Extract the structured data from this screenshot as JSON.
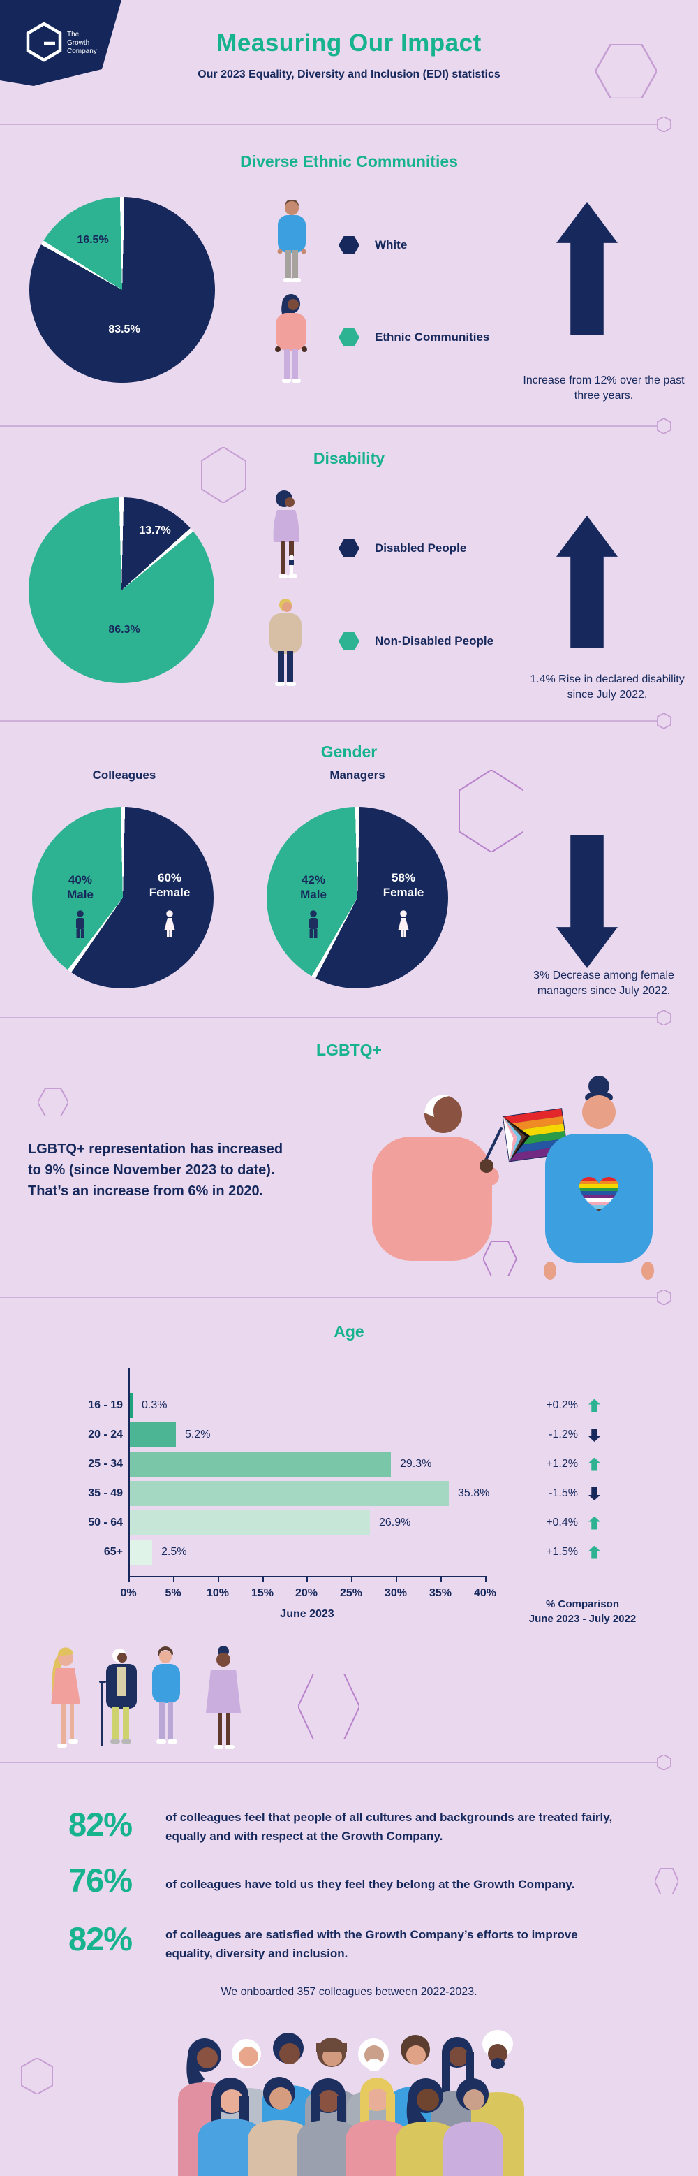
{
  "colors": {
    "background": "#e9d8ee",
    "navy": "#17295c",
    "teal": "#16b38c",
    "pie_navy": "#16285c",
    "pie_teal": "#2db391",
    "divider_line": "#cdb0da",
    "hex_stroke": "#c79ed3",
    "hex_stroke_bright": "#b983cc",
    "slice_gap": "#ffffff"
  },
  "header": {
    "logo": {
      "l1": "The",
      "l2": "Growth",
      "l3": "Company"
    },
    "title": "Measuring Our Impact",
    "subtitle": "Our 2023 Equality, Diversity and Inclusion (EDI) statistics"
  },
  "pies": {
    "ethnic": {
      "split_pct": 83.5
    },
    "disability": {
      "split_pct": 13.7
    },
    "colleagues": {
      "split_pct": 60
    },
    "managers": {
      "split_pct": 58
    }
  },
  "sections": {
    "ethnic": {
      "title": "Diverse Ethnic Communities",
      "pie_small_label": "16.5%",
      "pie_big_label": "83.5%",
      "legend": [
        {
          "label": "White"
        },
        {
          "label": "Ethnic Communities"
        }
      ],
      "note": "Increase from 12% over the past three years.",
      "trend": "up"
    },
    "disability": {
      "title": "Disability",
      "pie_small_label": "13.7%",
      "pie_big_label": "86.3%",
      "legend": [
        {
          "label": "Disabled People"
        },
        {
          "label": "Non-Disabled People"
        }
      ],
      "note": "1.4% Rise in declared disability since July 2022.",
      "trend": "up"
    },
    "gender": {
      "title": "Gender",
      "charts": [
        {
          "label": "Colleagues",
          "male_pct": "40%",
          "male_word": "Male",
          "female_pct": "60%",
          "female_word": "Female"
        },
        {
          "label": "Managers",
          "male_pct": "42%",
          "male_word": "Male",
          "female_pct": "58%",
          "female_word": "Female"
        }
      ],
      "note": "3% Decrease among female managers since July 2022.",
      "trend": "down"
    },
    "lgbtq": {
      "title": "LGBTQ+",
      "l1": "LGBTQ+ representation has increased",
      "l2": "to 9% (since November 2023 to date).",
      "l3": "That’s an increase from 6% in 2020."
    },
    "age": {
      "title": "Age",
      "rows": [
        {
          "label": "16 - 19",
          "value": 0.3,
          "value_label": "0.3%",
          "change": "+0.2%",
          "dir": "up"
        },
        {
          "label": "20 - 24",
          "value": 5.2,
          "value_label": "5.2%",
          "change": "-1.2%",
          "dir": "down"
        },
        {
          "label": "25 - 34",
          "value": 29.3,
          "value_label": "29.3%",
          "change": "+1.2%",
          "dir": "up"
        },
        {
          "label": "35 - 49",
          "value": 35.8,
          "value_label": "35.8%",
          "change": "-1.5%",
          "dir": "down"
        },
        {
          "label": "50 - 64",
          "value": 26.9,
          "value_label": "26.9%",
          "change": "+0.4%",
          "dir": "up"
        },
        {
          "label": "65+",
          "value": 2.5,
          "value_label": "2.5%",
          "change": "+1.5%",
          "dir": "up"
        }
      ],
      "bar_colors": [
        "#1ea37d",
        "#4cb694",
        "#79c6a8",
        "#a5d8c2",
        "#c6e7d7",
        "#e0f3e9"
      ],
      "ticks": [
        "0%",
        "5%",
        "10%",
        "15%",
        "20%",
        "25%",
        "30%",
        "35%",
        "40%"
      ],
      "axis_caption": "June 2023",
      "comparison_caption_1": "% Comparison",
      "comparison_caption_2": "June  2023 - July 2022"
    },
    "stats": {
      "items": [
        {
          "number": "82%",
          "text": "of colleagues feel that people of all cultures and backgrounds are treated fairly, equally and with respect at the Growth Company."
        },
        {
          "number": "76%",
          "text": "of colleagues have told us they feel they belong at the Growth Company."
        },
        {
          "number": "82%",
          "text": "of colleagues are satisfied with the Growth Company’s efforts to improve equality, diversity and inclusion."
        }
      ],
      "onboard_note": "We onboarded 357 colleagues between 2022-2023."
    }
  },
  "chart_data": [
    {
      "type": "pie",
      "title": "Diverse Ethnic Communities",
      "labels": [
        "White",
        "Ethnic Communities"
      ],
      "values": [
        83.5,
        16.5
      ],
      "annotation": "Increase from 12% over the past three years."
    },
    {
      "type": "pie",
      "title": "Disability",
      "labels": [
        "Disabled People",
        "Non-Disabled People"
      ],
      "values": [
        13.7,
        86.3
      ],
      "annotation": "1.4% Rise in declared disability since July 2022."
    },
    {
      "type": "pie",
      "title": "Gender - Colleagues",
      "labels": [
        "Male",
        "Female"
      ],
      "values": [
        40,
        60
      ]
    },
    {
      "type": "pie",
      "title": "Gender - Managers",
      "labels": [
        "Male",
        "Female"
      ],
      "values": [
        42,
        58
      ],
      "annotation": "3% Decrease among female managers since July 2022."
    },
    {
      "type": "bar",
      "title": "Age",
      "orientation": "horizontal",
      "categories": [
        "16 - 19",
        "20 - 24",
        "25 - 34",
        "35 - 49",
        "50 - 64",
        "65+"
      ],
      "values": [
        0.3,
        5.2,
        29.3,
        35.8,
        26.9,
        2.5
      ],
      "comparison_june2023_july2022": [
        "+0.2%",
        "-1.2%",
        "+1.2%",
        "-1.5%",
        "+0.4%",
        "+1.5%"
      ],
      "xlabel": "June 2023",
      "xlim": [
        0,
        40
      ],
      "xticks": [
        0,
        5,
        10,
        15,
        20,
        25,
        30,
        35,
        40
      ]
    }
  ]
}
